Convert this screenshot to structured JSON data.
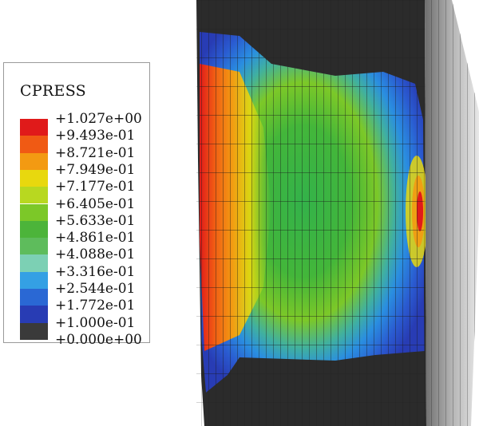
{
  "legend": {
    "title": "CPRESS",
    "labels": [
      "+1.027e+00",
      "+9.493e-01",
      "+8.721e-01",
      "+7.949e-01",
      "+7.177e-01",
      "+6.405e-01",
      "+5.633e-01",
      "+4.861e-01",
      "+4.088e-01",
      "+3.316e-01",
      "+2.544e-01",
      "+1.772e-01",
      "+1.000e-01",
      "+0.000e+00"
    ],
    "colors": [
      "#e01a1a",
      "#f05a14",
      "#f39a12",
      "#e8d80e",
      "#b8d820",
      "#7cc828",
      "#4cb43a",
      "#5ebc5c",
      "#7cd0b4",
      "#34a0e4",
      "#2a68d4",
      "#283cb4",
      "#3a3a3a"
    ]
  },
  "model": {
    "mesh_dark": "#2b2b2b",
    "side_gray": "#8c8c8c"
  }
}
